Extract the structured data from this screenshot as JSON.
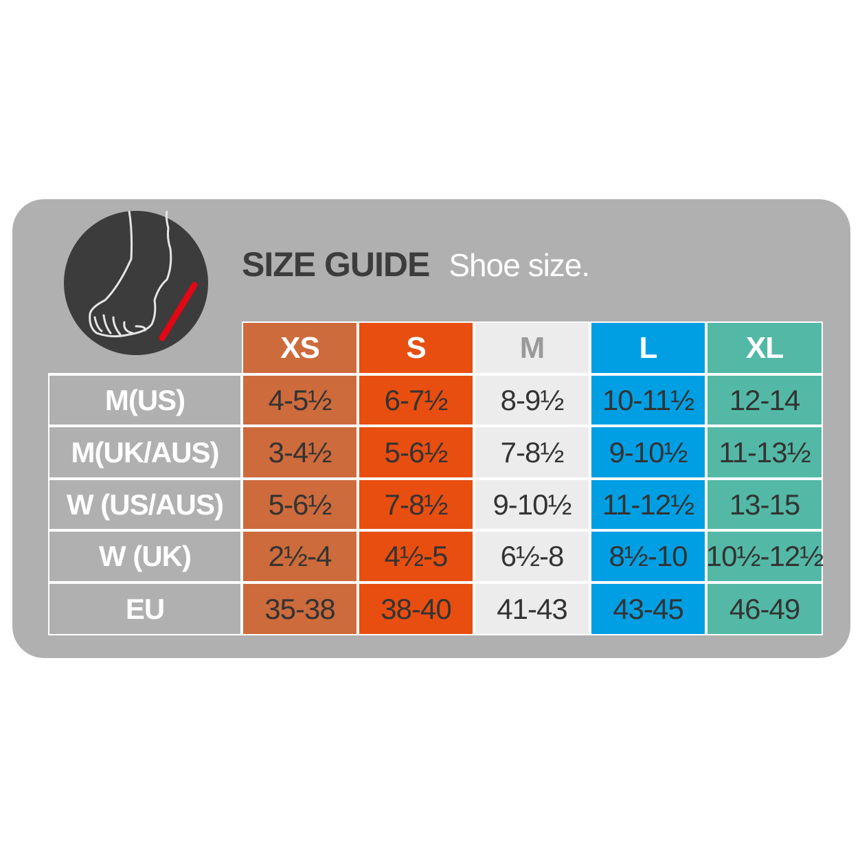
{
  "title": "SIZE GUIDE",
  "subtitle": "Shoe size.",
  "icon": "foot-measure-icon",
  "colors": {
    "card": "#b0b0b0",
    "XS": "#cd6b3c",
    "S": "#e84e10",
    "M": "#ececec",
    "L": "#009fe3",
    "XL": "#53b9a6",
    "marker": "#e30613"
  },
  "columns": [
    "XS",
    "S",
    "M",
    "L",
    "XL"
  ],
  "rows": [
    {
      "label": "M(US)",
      "values": [
        "4-5½",
        "6-7½",
        "8-9½",
        "10-11½",
        "12-14"
      ]
    },
    {
      "label": "M(UK/AUS)",
      "values": [
        "3-4½",
        "5-6½",
        "7-8½",
        "9-10½",
        "11-13½"
      ]
    },
    {
      "label": "W (US/AUS)",
      "values": [
        "5-6½",
        "7-8½",
        "9-10½",
        "11-12½",
        "13-15"
      ]
    },
    {
      "label": "W (UK)",
      "values": [
        "2½-4",
        "4½-5",
        "6½-8",
        "8½-10",
        "10½-12½"
      ]
    },
    {
      "label": "EU",
      "values": [
        "35-38",
        "38-40",
        "41-43",
        "43-45",
        "46-49"
      ]
    }
  ]
}
